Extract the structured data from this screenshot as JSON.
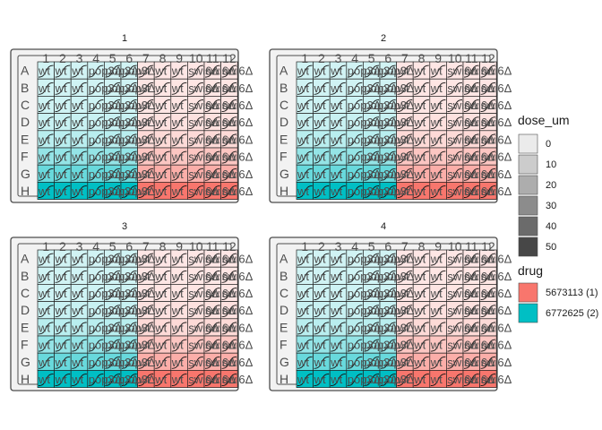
{
  "chart_data": {
    "type": "heatmap",
    "description_type": "multi-panel 96-well plate layout",
    "panels": [
      "1",
      "2",
      "3",
      "4"
    ],
    "columns": [
      "1",
      "2",
      "3",
      "4",
      "5",
      "6",
      "7",
      "8",
      "9",
      "10",
      "11",
      "12"
    ],
    "rows": [
      "A",
      "B",
      "C",
      "D",
      "E",
      "F",
      "G",
      "H"
    ],
    "strains_by_column": [
      "wt",
      "wt",
      "wt",
      "pop3Δ",
      "pop3Δ",
      "pop3Δ",
      "wt",
      "wt",
      "wt",
      "swi6Δ",
      "swi6Δ",
      "swi6Δ"
    ],
    "drug_by_panel_column": [
      [
        "6772625 (2)",
        "6772625 (2)",
        "6772625 (2)",
        "6772625 (2)",
        "6772625 (2)",
        "6772625 (2)",
        "5673113 (1)",
        "5673113 (1)",
        "5673113 (1)",
        "5673113 (1)",
        "5673113 (1)",
        "5673113 (1)"
      ],
      [
        "6772625 (2)",
        "6772625 (2)",
        "6772625 (2)",
        "6772625 (2)",
        "6772625 (2)",
        "6772625 (2)",
        "5673113 (1)",
        "5673113 (1)",
        "5673113 (1)",
        "5673113 (1)",
        "5673113 (1)",
        "5673113 (1)"
      ],
      [
        "6772625 (2)",
        "6772625 (2)",
        "6772625 (2)",
        "6772625 (2)",
        "6772625 (2)",
        "6772625 (2)",
        "5673113 (1)",
        "5673113 (1)",
        "5673113 (1)",
        "5673113 (1)",
        "5673113 (1)",
        "5673113 (1)"
      ],
      [
        "6772625 (2)",
        "6772625 (2)",
        "6772625 (2)",
        "6772625 (2)",
        "6772625 (2)",
        "6772625 (2)",
        "5673113 (1)",
        "5673113 (1)",
        "5673113 (1)",
        "5673113 (1)",
        "5673113 (1)",
        "5673113 (1)"
      ]
    ],
    "dose_um_by_row": [
      0,
      1,
      2,
      5,
      10,
      20,
      30,
      50
    ],
    "legends": {
      "dose": {
        "title": "dose_um",
        "levels": [
          "0",
          "10",
          "20",
          "30",
          "40",
          "50"
        ],
        "colors": [
          "#ebebeb",
          "#cccccc",
          "#adadad",
          "#8c8c8c",
          "#6b6b6b",
          "#474747"
        ]
      },
      "drug": {
        "title": "drug",
        "levels": [
          "5673113 (1)",
          "6772625 (2)"
        ],
        "colors": [
          "#f8766d",
          "#00bfc4"
        ]
      }
    },
    "legend_position": "right",
    "grid": false
  }
}
